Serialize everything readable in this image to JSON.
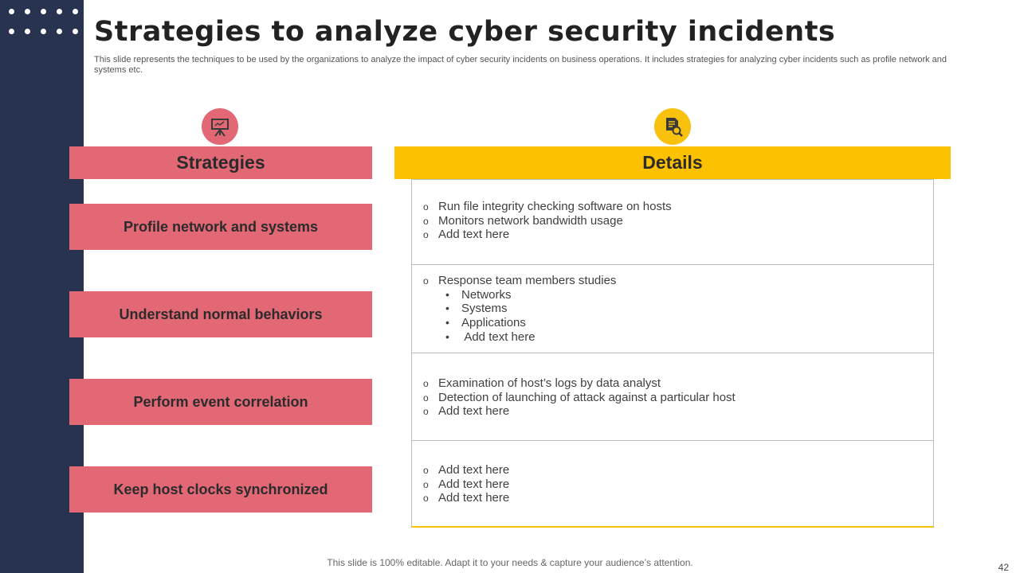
{
  "slide": {
    "title": "Strategies to analyze cyber security incidents",
    "subtitle": "This slide represents the techniques to be used by the organizations to analyze the impact of cyber security incidents on business operations. It includes strategies for analyzing cyber incidents such as profile network and systems etc.",
    "footer": "This slide is 100% editable. Adapt it to your needs & capture your audience’s attention.",
    "page_number": "42"
  },
  "icons": {
    "strategies": "presentation-board-icon",
    "details": "document-search-icon"
  },
  "colors": {
    "sidebar": "#283350",
    "strategy_accent": "#e26875",
    "details_accent": "#fcc100"
  },
  "headers": {
    "strategies": "Strategies",
    "details": "Details"
  },
  "strategies": [
    "Profile network and systems",
    "Understand normal behaviors",
    "Perform event correlation",
    "Keep host clocks synchronized"
  ],
  "details": [
    {
      "items": [
        "Run file integrity checking software on hosts",
        "Monitors network bandwidth usage",
        "Add text here"
      ]
    },
    {
      "items": [
        "Response team members studies"
      ],
      "subitems": [
        "Networks",
        "Systems",
        "Applications",
        " Add text here"
      ]
    },
    {
      "items": [
        "Examination of host’s logs by data analyst",
        "Detection of launching of attack against a particular host",
        "Add text here"
      ]
    },
    {
      "items": [
        "Add text here",
        "Add text here",
        "Add text here"
      ]
    }
  ]
}
